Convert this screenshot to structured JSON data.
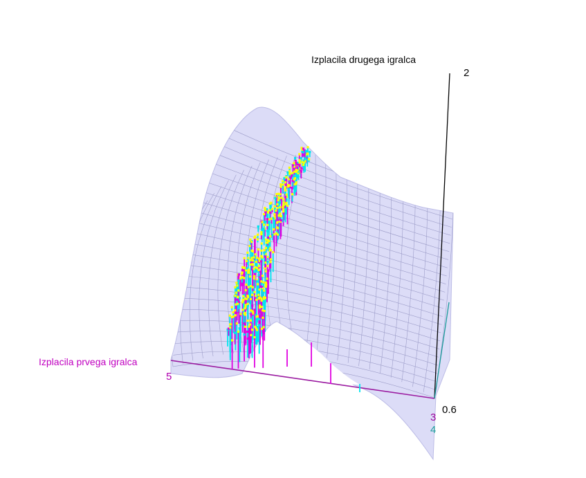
{
  "chart_data": {
    "type": "scatter",
    "subtype": "3d-surface-with-drop-lines",
    "title": "",
    "axes": {
      "x": {
        "label": "Izplacila prvega igralca",
        "ticks": [
          "5",
          "3"
        ],
        "color": "#b000b0"
      },
      "y": {
        "label": "",
        "ticks": [
          "4"
        ],
        "color": "#1a9a9a"
      },
      "z": {
        "label": "Izplacila drugega igralca",
        "ticks": [
          "2",
          "0.6"
        ],
        "color": "#000000"
      }
    },
    "surface": {
      "fill": "#c8c8f5",
      "grid": true
    },
    "series": [
      {
        "role": "points",
        "color": "#ffff00"
      },
      {
        "role": "drop-lines-a",
        "color": "#00e5ee"
      },
      {
        "role": "drop-lines-b",
        "color": "#e000e0"
      }
    ],
    "approx_point_count": 400
  }
}
